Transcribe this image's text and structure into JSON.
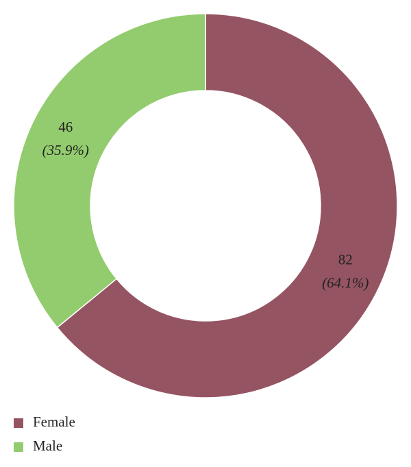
{
  "chart_data": {
    "type": "donut",
    "categories": [
      "Female",
      "Male"
    ],
    "values": [
      82,
      46
    ],
    "percent_labels": [
      "(64.1%)",
      "(35.9%)"
    ],
    "colors": [
      "#955462",
      "#93cc6e"
    ],
    "legend": "bottom-left"
  }
}
